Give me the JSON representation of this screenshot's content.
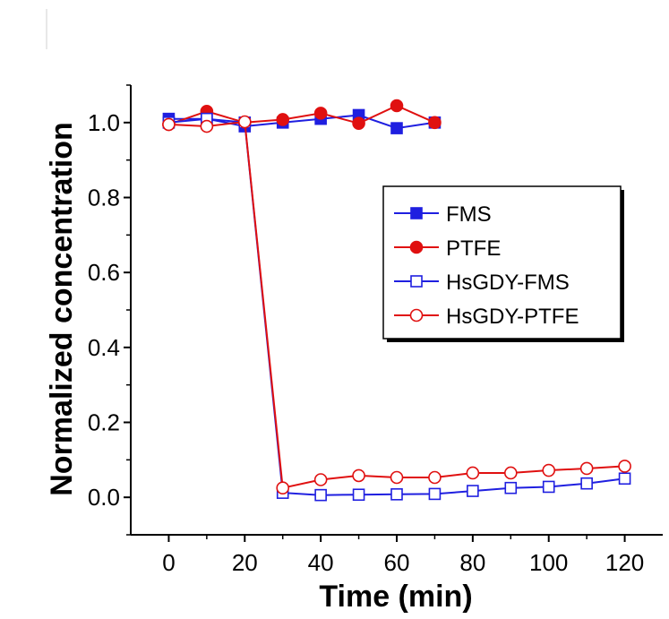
{
  "chart_data": {
    "type": "line",
    "xlabel": "Time (min)",
    "ylabel": "Normalized  concentration",
    "xlim": [
      -10,
      130
    ],
    "ylim": [
      -0.1,
      1.1
    ],
    "xticks": [
      0,
      20,
      40,
      60,
      80,
      100,
      120
    ],
    "yticks": [
      0.0,
      0.2,
      0.4,
      0.6,
      0.8,
      1.0
    ],
    "xtick_labels": [
      "0",
      "20",
      "40",
      "60",
      "80",
      "100",
      "120"
    ],
    "ytick_labels": [
      "0.0",
      "0.2",
      "0.4",
      "0.6",
      "0.8",
      "1.0"
    ],
    "grid": false,
    "legend_position": "right",
    "series": [
      {
        "name": "FMS",
        "color": "#1f1fe0",
        "marker": "square-filled",
        "x": [
          0,
          10,
          20,
          30,
          40,
          50,
          60,
          70
        ],
        "y": [
          1.01,
          1.01,
          0.99,
          1.0,
          1.01,
          1.02,
          0.985,
          1.0
        ]
      },
      {
        "name": "PTFE",
        "color": "#e01010",
        "marker": "circle-filled",
        "x": [
          0,
          10,
          20,
          30,
          40,
          50,
          60,
          70
        ],
        "y": [
          0.995,
          1.03,
          1.0,
          1.008,
          1.025,
          0.998,
          1.045,
          1.0
        ]
      },
      {
        "name": "HsGDY-FMS",
        "color": "#1f1fe0",
        "marker": "square-open",
        "x": [
          0,
          10,
          20,
          30,
          40,
          50,
          60,
          70,
          80,
          90,
          100,
          110,
          120
        ],
        "y": [
          1.0,
          1.01,
          1.0,
          0.012,
          0.006,
          0.007,
          0.008,
          0.009,
          0.017,
          0.025,
          0.028,
          0.037,
          0.05
        ]
      },
      {
        "name": "HsGDY-PTFE",
        "color": "#e01010",
        "marker": "circle-open",
        "x": [
          0,
          10,
          20,
          30,
          40,
          50,
          60,
          70,
          80,
          90,
          100,
          110,
          120
        ],
        "y": [
          0.995,
          0.99,
          1.002,
          0.025,
          0.047,
          0.058,
          0.053,
          0.053,
          0.065,
          0.065,
          0.072,
          0.077,
          0.083
        ]
      }
    ]
  }
}
